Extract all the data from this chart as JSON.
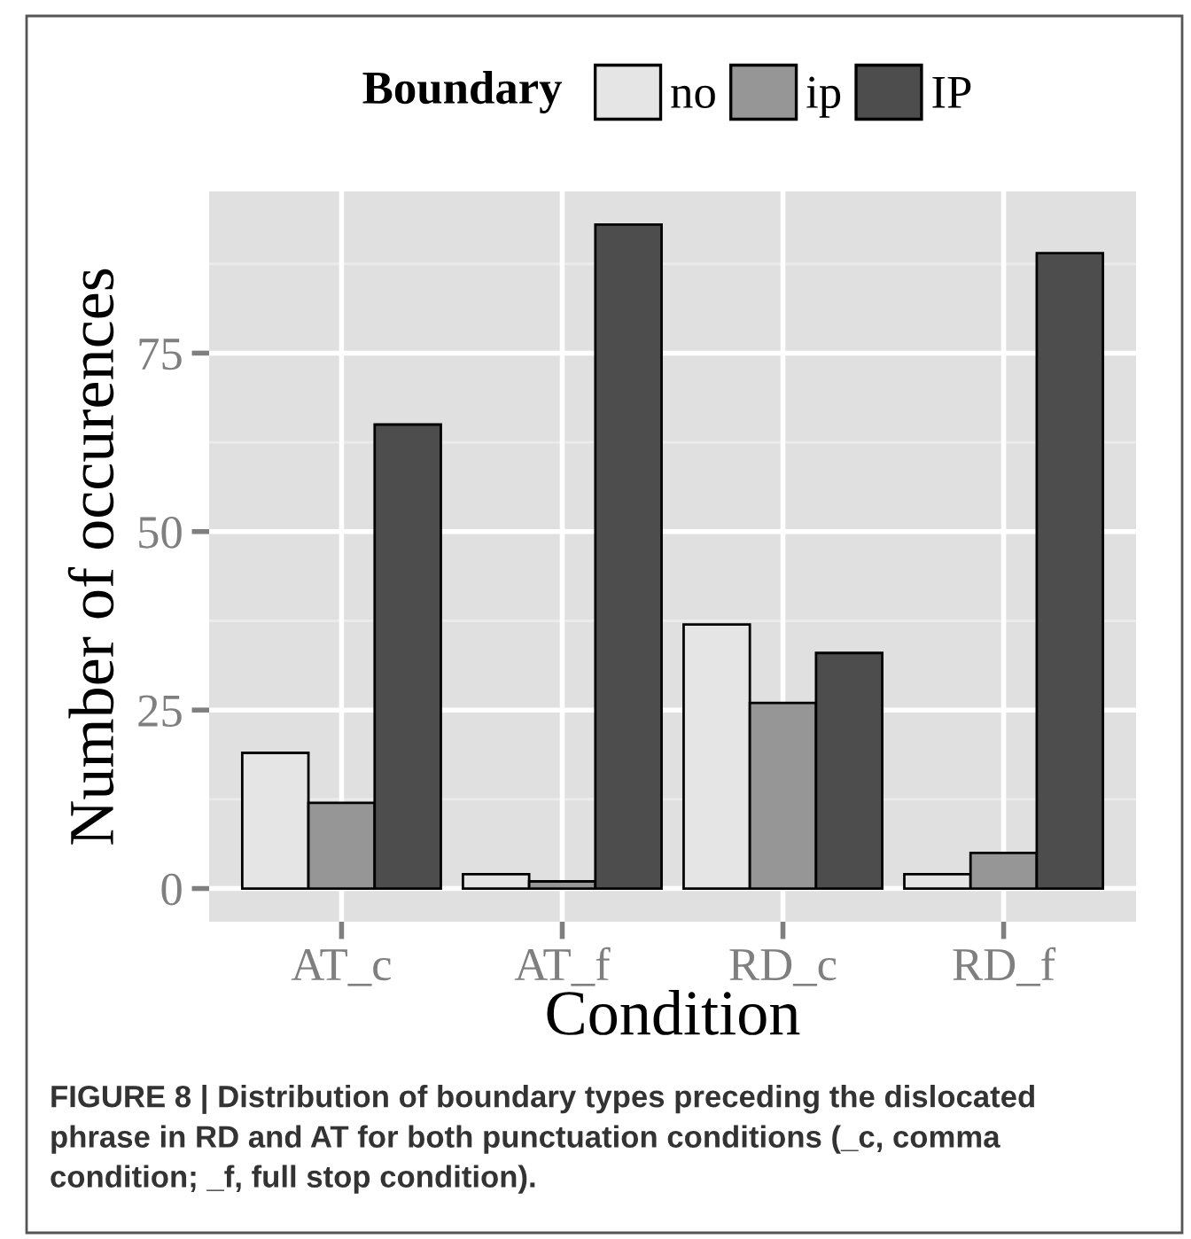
{
  "chart_data": {
    "type": "bar",
    "categories": [
      "AT_c",
      "AT_f",
      "RD_c",
      "RD_f"
    ],
    "series": [
      {
        "name": "no",
        "color": "#e5e5e5",
        "values": [
          19,
          2,
          37,
          2
        ]
      },
      {
        "name": "ip",
        "color": "#969696",
        "values": [
          12,
          1,
          26,
          5
        ]
      },
      {
        "name": "IP",
        "color": "#4d4d4d",
        "values": [
          65,
          93,
          33,
          89
        ]
      }
    ],
    "xlabel": "Condition",
    "ylabel": "Number of occurences",
    "legend_title": "Boundary",
    "ylim": [
      -4.65,
      97.65
    ],
    "yticks": [
      0,
      25,
      50,
      75
    ],
    "grid": true,
    "legend": "top",
    "annotations": [
      "FIGURE 8 | Distribution of boundary types preceding the dislocated\nphrase in RD and AT for both punctuation conditions (_c, comma\ncondition; _f, full stop condition)."
    ]
  }
}
